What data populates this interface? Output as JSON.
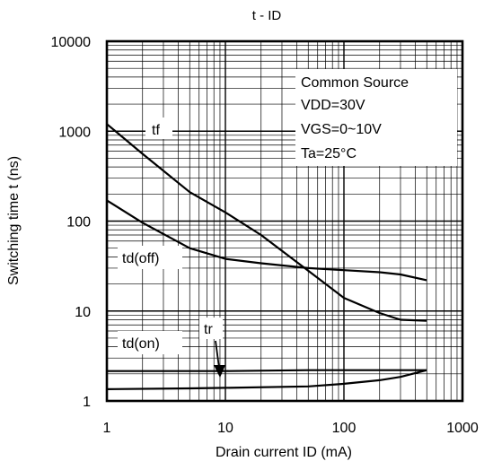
{
  "chart_data": {
    "type": "line",
    "title": "t - ID",
    "xlabel": "Drain current  ID (mA)",
    "ylabel": "Switching time  t (ns)",
    "xscale": "log",
    "yscale": "log",
    "xlim": [
      1,
      1000
    ],
    "ylim": [
      1,
      10000
    ],
    "grid": true,
    "x_tick_labels": [
      "1",
      "10",
      "100",
      "1000"
    ],
    "y_tick_labels": [
      "1",
      "10",
      "100",
      "1000",
      "10000"
    ],
    "annotations": [
      "Common Source",
      "VDD=30V",
      "VGS=0~10V",
      "Ta=25°C"
    ],
    "series": [
      {
        "name": "tf",
        "x": [
          1,
          2,
          5,
          10,
          20,
          50,
          100,
          200,
          300,
          500
        ],
        "y": [
          1200,
          560,
          210,
          125,
          70,
          28,
          14,
          9.5,
          8,
          7.8
        ]
      },
      {
        "name": "td(off)",
        "x": [
          1,
          2,
          5,
          10,
          20,
          50,
          100,
          200,
          300,
          500
        ],
        "y": [
          170,
          96,
          50,
          38,
          34,
          30,
          28.5,
          27,
          25.5,
          22
        ]
      },
      {
        "name": "td(on)",
        "x": [
          1,
          5,
          10,
          50,
          100,
          300,
          500
        ],
        "y": [
          2.15,
          2.15,
          2.15,
          2.2,
          2.2,
          2.2,
          2.2
        ]
      },
      {
        "name": "tr",
        "x": [
          1,
          5,
          10,
          50,
          100,
          200,
          300,
          500
        ],
        "y": [
          1.35,
          1.38,
          1.4,
          1.45,
          1.55,
          1.7,
          1.85,
          2.2
        ]
      }
    ]
  }
}
